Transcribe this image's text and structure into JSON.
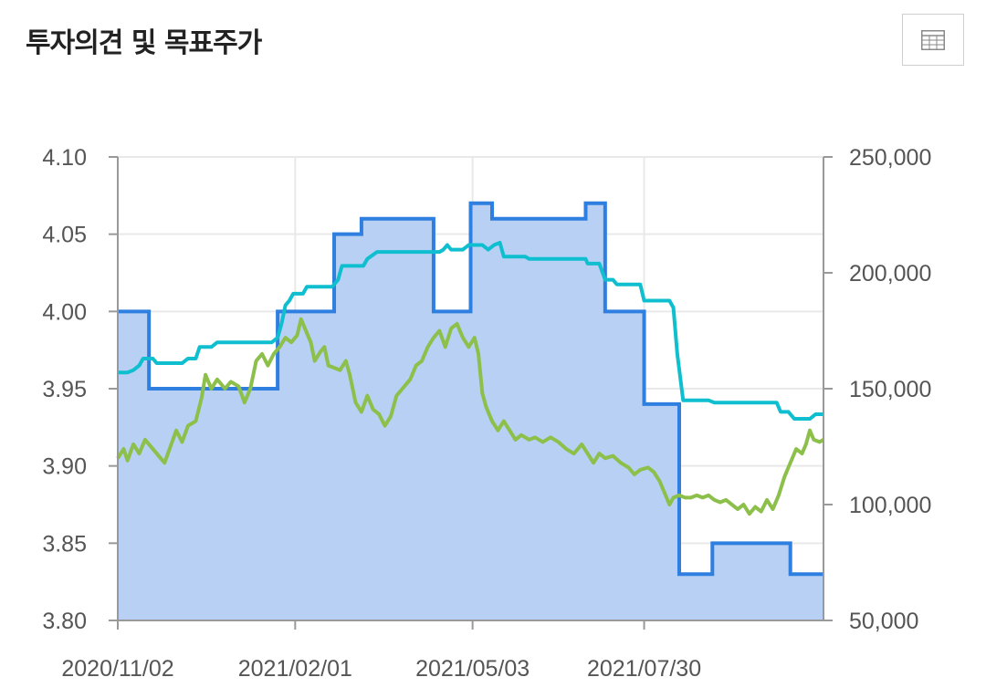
{
  "header": {
    "title": "투자의견 및 목표주가",
    "table_icon": "table-grid-icon"
  },
  "colors": {
    "opinion": "#2f7fe0",
    "opinion_fill": "#b7d0f4",
    "target_price": "#0fbfcf",
    "stock_price": "#8cc04a",
    "grid": "#e9e9e9",
    "axis": "#999999"
  },
  "chart_data": {
    "type": "area",
    "x_ticks": [
      "2020/11/02",
      "2021/02/01",
      "2021/05/03",
      "2021/07/30"
    ],
    "x_range": [
      "2020/11/02",
      "2021/10/30"
    ],
    "y_left": {
      "ticks": [
        "4.10",
        "4.05",
        "4.00",
        "3.95",
        "3.90",
        "3.85",
        "3.80"
      ],
      "range": [
        3.8,
        4.1
      ]
    },
    "y_right": {
      "ticks": [
        "250,000",
        "200,000",
        "150,000",
        "100,000",
        "50,000"
      ],
      "range": [
        50000,
        250000
      ]
    },
    "grid": true,
    "series": [
      {
        "kind": "step-area",
        "axis": "left",
        "points": [
          [
            "2020/11/02",
            4.0
          ],
          [
            "2020/11/18",
            3.95
          ],
          [
            "2021/01/23",
            4.0
          ],
          [
            "2021/02/21",
            4.05
          ],
          [
            "2021/03/07",
            4.06
          ],
          [
            "2021/04/13",
            4.0
          ],
          [
            "2021/05/02",
            4.07
          ],
          [
            "2021/05/13",
            4.06
          ],
          [
            "2021/06/30",
            4.07
          ],
          [
            "2021/07/10",
            4.0
          ],
          [
            "2021/07/30",
            3.94
          ],
          [
            "2021/08/17",
            3.83
          ],
          [
            "2021/09/03",
            3.85
          ],
          [
            "2021/10/13",
            3.83
          ],
          [
            "2021/10/30",
            3.83
          ]
        ]
      },
      {
        "kind": "line",
        "axis": "right",
        "points": [
          [
            "2020/11/02",
            157000
          ],
          [
            "2020/11/07",
            157000
          ],
          [
            "2020/11/10",
            158000
          ],
          [
            "2020/11/13",
            160000
          ],
          [
            "2020/11/15",
            163000
          ],
          [
            "2020/11/20",
            163000
          ],
          [
            "2020/11/22",
            161000
          ],
          [
            "2020/12/05",
            161000
          ],
          [
            "2020/12/08",
            163000
          ],
          [
            "2020/12/12",
            163000
          ],
          [
            "2020/12/14",
            168000
          ],
          [
            "2020/12/20",
            168000
          ],
          [
            "2020/12/23",
            170000
          ],
          [
            "2021/01/20",
            170000
          ],
          [
            "2021/01/23",
            172000
          ],
          [
            "2021/01/25",
            178000
          ],
          [
            "2021/01/27",
            186000
          ],
          [
            "2021/01/29",
            188000
          ],
          [
            "2021/01/31",
            191000
          ],
          [
            "2021/02/05",
            191000
          ],
          [
            "2021/02/07",
            194000
          ],
          [
            "2021/02/20",
            194000
          ],
          [
            "2021/02/23",
            197000
          ],
          [
            "2021/02/25",
            203000
          ],
          [
            "2021/03/08",
            203000
          ],
          [
            "2021/03/10",
            206000
          ],
          [
            "2021/03/15",
            209000
          ],
          [
            "2021/04/16",
            209000
          ],
          [
            "2021/04/18",
            210000
          ],
          [
            "2021/04/20",
            212000
          ],
          [
            "2021/04/22",
            210000
          ],
          [
            "2021/04/28",
            210000
          ],
          [
            "2021/05/01",
            212000
          ],
          [
            "2021/05/08",
            212000
          ],
          [
            "2021/05/11",
            210000
          ],
          [
            "2021/05/14",
            212000
          ],
          [
            "2021/05/17",
            213000
          ],
          [
            "2021/05/19",
            207000
          ],
          [
            "2021/05/30",
            207000
          ],
          [
            "2021/06/01",
            206000
          ],
          [
            "2021/06/30",
            206000
          ],
          [
            "2021/07/01",
            204000
          ],
          [
            "2021/07/07",
            204000
          ],
          [
            "2021/07/10",
            197000
          ],
          [
            "2021/07/14",
            197000
          ],
          [
            "2021/07/16",
            195000
          ],
          [
            "2021/07/28",
            195000
          ],
          [
            "2021/07/30",
            188000
          ],
          [
            "2021/08/12",
            188000
          ],
          [
            "2021/08/14",
            185000
          ],
          [
            "2021/08/16",
            165000
          ],
          [
            "2021/08/19",
            145000
          ],
          [
            "2021/09/01",
            145000
          ],
          [
            "2021/09/04",
            144000
          ],
          [
            "2021/10/06",
            144000
          ],
          [
            "2021/10/08",
            140000
          ],
          [
            "2021/10/12",
            140000
          ],
          [
            "2021/10/15",
            137000
          ],
          [
            "2021/10/23",
            137000
          ],
          [
            "2021/10/26",
            139000
          ],
          [
            "2021/10/30",
            139000
          ]
        ]
      },
      {
        "kind": "line",
        "axis": "right",
        "points": [
          [
            "2020/11/02",
            120000
          ],
          [
            "2020/11/05",
            124000
          ],
          [
            "2020/11/07",
            119000
          ],
          [
            "2020/11/10",
            126000
          ],
          [
            "2020/11/13",
            122000
          ],
          [
            "2020/11/16",
            128000
          ],
          [
            "2020/11/20",
            124000
          ],
          [
            "2020/11/23",
            121000
          ],
          [
            "2020/11/26",
            118000
          ],
          [
            "2020/11/29",
            125000
          ],
          [
            "2020/12/02",
            132000
          ],
          [
            "2020/12/05",
            127000
          ],
          [
            "2020/12/08",
            134000
          ],
          [
            "2020/12/12",
            136000
          ],
          [
            "2020/12/15",
            146000
          ],
          [
            "2020/12/17",
            156000
          ],
          [
            "2020/12/20",
            150000
          ],
          [
            "2020/12/23",
            154000
          ],
          [
            "2020/12/27",
            150000
          ],
          [
            "2020/12/30",
            153000
          ],
          [
            "2021/01/03",
            151000
          ],
          [
            "2021/01/06",
            144000
          ],
          [
            "2021/01/09",
            150000
          ],
          [
            "2021/01/12",
            162000
          ],
          [
            "2021/01/15",
            165000
          ],
          [
            "2021/01/18",
            160000
          ],
          [
            "2021/01/21",
            165000
          ],
          [
            "2021/01/24",
            168000
          ],
          [
            "2021/01/27",
            172000
          ],
          [
            "2021/01/30",
            170000
          ],
          [
            "2021/02/02",
            173000
          ],
          [
            "2021/02/04",
            180000
          ],
          [
            "2021/02/06",
            176000
          ],
          [
            "2021/02/09",
            170000
          ],
          [
            "2021/02/11",
            162000
          ],
          [
            "2021/02/14",
            166000
          ],
          [
            "2021/02/16",
            168000
          ],
          [
            "2021/02/18",
            160000
          ],
          [
            "2021/02/21",
            159000
          ],
          [
            "2021/02/24",
            158000
          ],
          [
            "2021/02/27",
            162000
          ],
          [
            "2021/03/01",
            156000
          ],
          [
            "2021/03/04",
            144000
          ],
          [
            "2021/03/07",
            140000
          ],
          [
            "2021/03/10",
            147000
          ],
          [
            "2021/03/13",
            141000
          ],
          [
            "2021/03/16",
            139000
          ],
          [
            "2021/03/19",
            134000
          ],
          [
            "2021/03/22",
            138000
          ],
          [
            "2021/03/25",
            147000
          ],
          [
            "2021/03/28",
            150000
          ],
          [
            "2021/04/01",
            154000
          ],
          [
            "2021/04/04",
            160000
          ],
          [
            "2021/04/07",
            162000
          ],
          [
            "2021/04/10",
            168000
          ],
          [
            "2021/04/13",
            172000
          ],
          [
            "2021/04/16",
            175000
          ],
          [
            "2021/04/19",
            168000
          ],
          [
            "2021/04/22",
            176000
          ],
          [
            "2021/04/25",
            178000
          ],
          [
            "2021/04/28",
            172000
          ],
          [
            "2021/05/01",
            168000
          ],
          [
            "2021/05/04",
            172000
          ],
          [
            "2021/05/06",
            165000
          ],
          [
            "2021/05/08",
            148000
          ],
          [
            "2021/05/10",
            142000
          ],
          [
            "2021/05/13",
            136000
          ],
          [
            "2021/05/16",
            132000
          ],
          [
            "2021/05/19",
            136000
          ],
          [
            "2021/05/22",
            132000
          ],
          [
            "2021/05/25",
            128000
          ],
          [
            "2021/05/28",
            130000
          ],
          [
            "2021/06/01",
            128000
          ],
          [
            "2021/06/04",
            129000
          ],
          [
            "2021/06/08",
            127000
          ],
          [
            "2021/06/12",
            129000
          ],
          [
            "2021/06/16",
            127000
          ],
          [
            "2021/06/20",
            124000
          ],
          [
            "2021/06/24",
            122000
          ],
          [
            "2021/06/28",
            126000
          ],
          [
            "2021/07/01",
            122000
          ],
          [
            "2021/07/04",
            118000
          ],
          [
            "2021/07/07",
            122000
          ],
          [
            "2021/07/10",
            120000
          ],
          [
            "2021/07/14",
            121000
          ],
          [
            "2021/07/18",
            118000
          ],
          [
            "2021/07/22",
            116000
          ],
          [
            "2021/07/25",
            113000
          ],
          [
            "2021/07/28",
            115000
          ],
          [
            "2021/08/01",
            116000
          ],
          [
            "2021/08/04",
            114000
          ],
          [
            "2021/08/07",
            110000
          ],
          [
            "2021/08/10",
            104000
          ],
          [
            "2021/08/12",
            100000
          ],
          [
            "2021/08/14",
            103000
          ],
          [
            "2021/08/17",
            104000
          ],
          [
            "2021/08/20",
            103000
          ],
          [
            "2021/08/23",
            103000
          ],
          [
            "2021/08/26",
            104000
          ],
          [
            "2021/08/29",
            103000
          ],
          [
            "2021/09/01",
            104000
          ],
          [
            "2021/09/04",
            102000
          ],
          [
            "2021/09/07",
            101000
          ],
          [
            "2021/09/10",
            102000
          ],
          [
            "2021/09/13",
            100000
          ],
          [
            "2021/09/16",
            98000
          ],
          [
            "2021/09/19",
            100000
          ],
          [
            "2021/09/22",
            96000
          ],
          [
            "2021/09/25",
            99000
          ],
          [
            "2021/09/28",
            97000
          ],
          [
            "2021/10/01",
            102000
          ],
          [
            "2021/10/04",
            98000
          ],
          [
            "2021/10/07",
            104000
          ],
          [
            "2021/10/10",
            112000
          ],
          [
            "2021/10/13",
            118000
          ],
          [
            "2021/10/16",
            124000
          ],
          [
            "2021/10/19",
            122000
          ],
          [
            "2021/10/21",
            126000
          ],
          [
            "2021/10/23",
            132000
          ],
          [
            "2021/10/25",
            128000
          ],
          [
            "2021/10/28",
            127000
          ],
          [
            "2021/10/30",
            128000
          ]
        ]
      }
    ]
  }
}
